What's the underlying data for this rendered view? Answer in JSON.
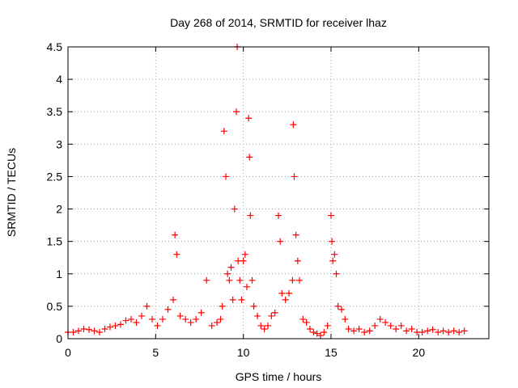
{
  "chart_data": {
    "type": "scatter",
    "title": "Day 268 of 2014, SRMTID for receiver lhaz",
    "xlabel": "GPS time / hours",
    "ylabel": "SRMTID / TECUs",
    "xlim": [
      0,
      24
    ],
    "ylim": [
      0,
      4.5
    ],
    "xticks": [
      "0",
      "5",
      "10",
      "15",
      "20"
    ],
    "yticks": [
      "0",
      "0.5",
      "1",
      "1.5",
      "2",
      "2.5",
      "3",
      "3.5",
      "4",
      "4.5"
    ],
    "grid": true,
    "marker": "+",
    "color": "#ff0000",
    "x": [
      0.0,
      0.3,
      0.6,
      0.9,
      1.2,
      1.5,
      1.8,
      2.1,
      2.4,
      2.7,
      3.0,
      3.3,
      3.6,
      3.9,
      4.2,
      4.5,
      4.8,
      5.1,
      5.4,
      5.7,
      6.0,
      6.1,
      6.2,
      6.4,
      6.7,
      7.0,
      7.3,
      7.6,
      7.9,
      8.2,
      8.5,
      8.7,
      8.8,
      8.9,
      9.0,
      9.1,
      9.2,
      9.3,
      9.4,
      9.5,
      9.6,
      9.65,
      9.7,
      9.8,
      9.9,
      10.0,
      10.1,
      10.2,
      10.3,
      10.35,
      10.4,
      10.5,
      10.6,
      10.8,
      11.0,
      11.2,
      11.4,
      11.6,
      11.8,
      12.0,
      12.1,
      12.2,
      12.4,
      12.6,
      12.8,
      12.85,
      12.9,
      13.0,
      13.1,
      13.2,
      13.4,
      13.6,
      13.8,
      14.0,
      14.2,
      14.4,
      14.6,
      14.8,
      15.0,
      15.05,
      15.1,
      15.2,
      15.3,
      15.4,
      15.6,
      15.8,
      16.0,
      16.3,
      16.6,
      16.9,
      17.2,
      17.5,
      17.8,
      18.1,
      18.4,
      18.7,
      19.0,
      19.3,
      19.6,
      19.9,
      20.2,
      20.5,
      20.8,
      21.1,
      21.4,
      21.7,
      22.0,
      22.3,
      22.6
    ],
    "y": [
      0.1,
      0.1,
      0.12,
      0.15,
      0.14,
      0.12,
      0.1,
      0.15,
      0.18,
      0.2,
      0.22,
      0.28,
      0.3,
      0.25,
      0.35,
      0.5,
      0.3,
      0.2,
      0.3,
      0.45,
      0.6,
      1.6,
      1.3,
      0.35,
      0.3,
      0.25,
      0.3,
      0.4,
      0.9,
      0.2,
      0.25,
      0.3,
      0.5,
      3.2,
      2.5,
      1.0,
      0.9,
      1.1,
      0.6,
      2.0,
      3.5,
      4.5,
      1.2,
      0.9,
      0.6,
      1.2,
      1.3,
      0.8,
      3.4,
      2.8,
      1.9,
      0.9,
      0.5,
      0.35,
      0.2,
      0.15,
      0.2,
      0.35,
      0.4,
      1.9,
      1.5,
      0.7,
      0.6,
      0.7,
      0.9,
      3.3,
      2.5,
      1.6,
      1.2,
      0.9,
      0.3,
      0.25,
      0.15,
      0.1,
      0.08,
      0.05,
      0.1,
      0.2,
      1.9,
      1.5,
      1.2,
      1.3,
      1.0,
      0.5,
      0.45,
      0.3,
      0.15,
      0.12,
      0.15,
      0.1,
      0.12,
      0.2,
      0.3,
      0.25,
      0.2,
      0.15,
      0.2,
      0.12,
      0.15,
      0.1,
      0.1,
      0.12,
      0.14,
      0.1,
      0.12,
      0.1,
      0.12,
      0.1,
      0.12
    ]
  }
}
